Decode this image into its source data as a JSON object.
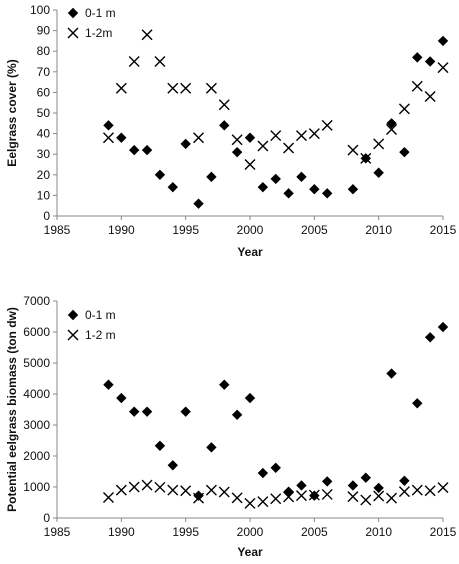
{
  "chart_data": [
    {
      "type": "scatter",
      "title": "",
      "xlabel": "Year",
      "ylabel": "Eelgrass cover (%)",
      "xlim": [
        1985,
        2015
      ],
      "ylim": [
        0,
        100
      ],
      "xticks": [
        1985,
        1990,
        1995,
        2000,
        2005,
        2010,
        2015
      ],
      "yticks": [
        0,
        10,
        20,
        30,
        40,
        50,
        60,
        70,
        80,
        90,
        100
      ],
      "grid": false,
      "legend": "top-left",
      "series": [
        {
          "name": "0-1 m",
          "marker": "diamond",
          "points": [
            [
              1989,
              44
            ],
            [
              1990,
              38
            ],
            [
              1991,
              32
            ],
            [
              1992,
              32
            ],
            [
              1993,
              20
            ],
            [
              1994,
              14
            ],
            [
              1995,
              35
            ],
            [
              1996,
              6
            ],
            [
              1997,
              19
            ],
            [
              1998,
              44
            ],
            [
              1999,
              31
            ],
            [
              2000,
              38
            ],
            [
              2001,
              14
            ],
            [
              2002,
              18
            ],
            [
              2003,
              11
            ],
            [
              2004,
              19
            ],
            [
              2005,
              13
            ],
            [
              2006,
              11
            ],
            [
              2008,
              13
            ],
            [
              2009,
              28
            ],
            [
              2010,
              21
            ],
            [
              2011,
              45
            ],
            [
              2012,
              31
            ],
            [
              2013,
              77
            ],
            [
              2014,
              75
            ],
            [
              2015,
              85
            ]
          ]
        },
        {
          "name": "1-2m",
          "marker": "x",
          "points": [
            [
              1989,
              38
            ],
            [
              1990,
              62
            ],
            [
              1991,
              75
            ],
            [
              1992,
              88
            ],
            [
              1993,
              75
            ],
            [
              1994,
              62
            ],
            [
              1995,
              62
            ],
            [
              1996,
              38
            ],
            [
              1997,
              62
            ],
            [
              1998,
              54
            ],
            [
              1999,
              37
            ],
            [
              2000,
              25
            ],
            [
              2001,
              34
            ],
            [
              2002,
              39
            ],
            [
              2003,
              33
            ],
            [
              2004,
              39
            ],
            [
              2005,
              40
            ],
            [
              2006,
              44
            ],
            [
              2008,
              32
            ],
            [
              2009,
              28
            ],
            [
              2010,
              35
            ],
            [
              2011,
              42
            ],
            [
              2012,
              52
            ],
            [
              2013,
              63
            ],
            [
              2014,
              58
            ],
            [
              2015,
              72
            ]
          ]
        }
      ]
    },
    {
      "type": "scatter",
      "title": "",
      "xlabel": "Year",
      "ylabel": "Potential eelgrass biomass (ton dw)",
      "xlim": [
        1985,
        2015
      ],
      "ylim": [
        0,
        7000
      ],
      "xticks": [
        1985,
        1990,
        1995,
        2000,
        2005,
        2010,
        2015
      ],
      "yticks": [
        0,
        1000,
        2000,
        3000,
        4000,
        5000,
        6000,
        7000
      ],
      "grid": false,
      "legend": "top-left",
      "series": [
        {
          "name": "0-1 m",
          "marker": "diamond",
          "points": [
            [
              1989,
              4300
            ],
            [
              1990,
              3870
            ],
            [
              1991,
              3430
            ],
            [
              1992,
              3430
            ],
            [
              1993,
              2330
            ],
            [
              1994,
              1700
            ],
            [
              1995,
              3430
            ],
            [
              1996,
              720
            ],
            [
              1997,
              2280
            ],
            [
              1998,
              4300
            ],
            [
              1999,
              3330
            ],
            [
              2000,
              3870
            ],
            [
              2001,
              1450
            ],
            [
              2002,
              1620
            ],
            [
              2003,
              850
            ],
            [
              2004,
              1050
            ],
            [
              2005,
              720
            ],
            [
              2006,
              1180
            ],
            [
              2008,
              1050
            ],
            [
              2009,
              1300
            ],
            [
              2010,
              970
            ],
            [
              2011,
              4660
            ],
            [
              2012,
              1200
            ],
            [
              2013,
              3700
            ],
            [
              2014,
              5830
            ],
            [
              2015,
              6160
            ]
          ]
        },
        {
          "name": "1-2 m",
          "marker": "x",
          "points": [
            [
              1989,
              660
            ],
            [
              1990,
              900
            ],
            [
              1991,
              1000
            ],
            [
              1992,
              1060
            ],
            [
              1993,
              990
            ],
            [
              1994,
              900
            ],
            [
              1995,
              880
            ],
            [
              1996,
              640
            ],
            [
              1997,
              900
            ],
            [
              1998,
              840
            ],
            [
              1999,
              650
            ],
            [
              2000,
              470
            ],
            [
              2001,
              530
            ],
            [
              2002,
              620
            ],
            [
              2003,
              680
            ],
            [
              2004,
              720
            ],
            [
              2005,
              740
            ],
            [
              2006,
              760
            ],
            [
              2008,
              690
            ],
            [
              2009,
              580
            ],
            [
              2010,
              710
            ],
            [
              2011,
              640
            ],
            [
              2012,
              850
            ],
            [
              2013,
              900
            ],
            [
              2014,
              880
            ],
            [
              2015,
              980
            ]
          ]
        }
      ]
    }
  ]
}
